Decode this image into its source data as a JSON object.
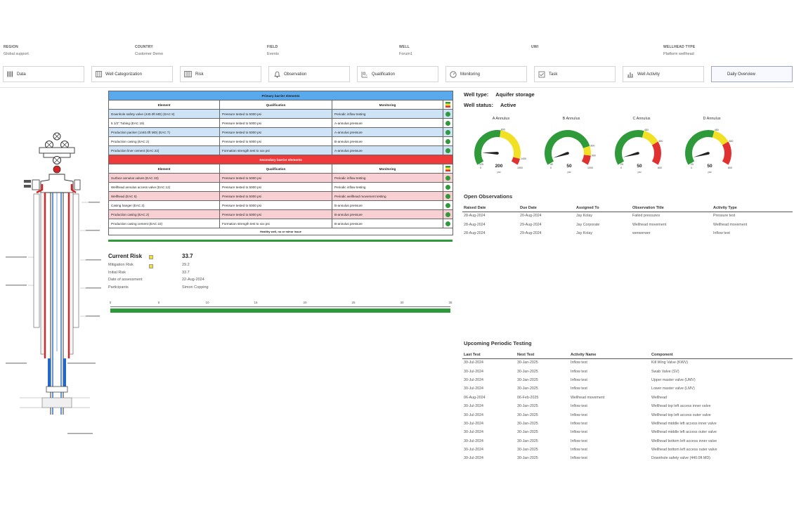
{
  "header": [
    {
      "label": "REGION",
      "value": "Global support"
    },
    {
      "label": "COUNTRY",
      "value": "Customer Demo"
    },
    {
      "label": "FIELD",
      "value": "Events"
    },
    {
      "label": "WELL",
      "value": "Forum1"
    },
    {
      "label": "UWI",
      "value": ""
    },
    {
      "label": "WELLHEAD TYPE",
      "value": "Platform wellhead"
    }
  ],
  "nav": [
    {
      "label": "Data",
      "icon": "data-icon"
    },
    {
      "label": "Well Categorization",
      "icon": "categorization-icon"
    },
    {
      "label": "Risk",
      "icon": "risk-icon"
    },
    {
      "label": "Observation",
      "icon": "bell-icon"
    },
    {
      "label": "Qualification",
      "icon": "qualification-icon"
    },
    {
      "label": "Monitoring",
      "icon": "gauge-icon"
    },
    {
      "label": "Task",
      "icon": "task-icon"
    },
    {
      "label": "Well Activity",
      "icon": "activity-icon"
    },
    {
      "label": "Daily Overview",
      "icon": "",
      "active": true
    }
  ],
  "primary": {
    "title": "Primary barrier elements",
    "cols": [
      "Element",
      "Qualification",
      "Monitoring"
    ],
    "rows": [
      {
        "element": "Downhole safety valve (440.0ft MD) (EAC 8)",
        "qualification": "Pressure tested to 5000 psi",
        "monitoring": "Periodic inflow testing"
      },
      {
        "element": "5 1/2\" Tubing (EAC 19)",
        "qualification": "Pressure tested to 5000 psi",
        "monitoring": "A-annulus pressure"
      },
      {
        "element": "Production packer (1440.0ft MD) (EAC 7)",
        "qualification": "Pressure tested to 5000 psi",
        "monitoring": "A-annulus pressure"
      },
      {
        "element": "Production casing (EAC 2)",
        "qualification": "Pressure tested to 5000 psi",
        "monitoring": "B-annulus pressure"
      },
      {
        "element": "Production liner cement (EAC 22)",
        "qualification": "Formation strength test to xxx psi",
        "monitoring": "A-annulus pressure"
      }
    ]
  },
  "secondary": {
    "title": "Secondary barrier elements",
    "cols": [
      "Element",
      "Qualification",
      "Monitoring"
    ],
    "rows": [
      {
        "element": "Surface annulus valves (EAC 33)",
        "qualification": "Pressure tested to 5000 psi",
        "monitoring": "Periodic inflow testing"
      },
      {
        "element": "Wellhead annulus access valve (EAC 12)",
        "qualification": "Pressure tested to 5000 psi",
        "monitoring": "Periodic inflow testing"
      },
      {
        "element": "Wellhead (EAC 5)",
        "qualification": "Pressure tested to 5000 psi",
        "monitoring": "Periodic wellhead movement testing"
      },
      {
        "element": "Casing hanger (EAC 3)",
        "qualification": "Pressure tested to 5000 psi",
        "monitoring": "B-annulus pressure"
      },
      {
        "element": "Production casing (EAC 2)",
        "qualification": "Pressure tested to 5000 psi",
        "monitoring": "B-annulus pressure"
      },
      {
        "element": "Production casing cement (EAC 22)",
        "qualification": "Formation strength test to xxx psi",
        "monitoring": "B-annulus pressure"
      }
    ]
  },
  "status_footer": "Healthy well, no or minor issue",
  "risk": {
    "current_label": "Current Risk",
    "current_value": "33.7",
    "mitigation_label": "Mitigation Risk",
    "mitigation_value": "29.2",
    "initial_label": "Initial Risk",
    "initial_value": "33.7",
    "date_label": "Date of assessment",
    "date_value": "22-Aug-2024",
    "participants_label": "Participants",
    "participants_value": "Simon Copping",
    "scale_ticks": [
      "0",
      "5",
      "10",
      "15",
      "20",
      "25",
      "30",
      "35"
    ]
  },
  "well": {
    "type_label": "Well type:",
    "type_value": "Aquifer storage",
    "status_label": "Well status:",
    "status_value": "Active"
  },
  "gauges": [
    {
      "title": "A Annulus",
      "value": "200",
      "unit": "psi",
      "min": "0",
      "max": "1500",
      "yellow": "800",
      "red": "1400",
      "low": "125",
      "reading": 200,
      "range": 1500
    },
    {
      "title": "B Annulus",
      "value": "50",
      "unit": "psi",
      "min": "0",
      "max": "1000",
      "yellow": "800",
      "red": "900",
      "low": "40",
      "reading": 50,
      "range": 1000
    },
    {
      "title": "C Annulus",
      "value": "50",
      "unit": "psi",
      "min": "0",
      "max": "800",
      "yellow": "450",
      "red": "600",
      "low": "25",
      "reading": 50,
      "range": 800
    },
    {
      "title": "D Annulus",
      "value": "50",
      "unit": "psi",
      "min": "0",
      "max": "800",
      "yellow": "450",
      "red": "600",
      "low": "25",
      "reading": 50,
      "range": 800
    }
  ],
  "observations": {
    "title": "Open Observations",
    "cols": [
      "Raised Date",
      "Due Date",
      "Assigned To",
      "Observation Title",
      "Activity Type"
    ],
    "rows": [
      [
        "28-Aug-2024",
        "20-Aug-2024",
        "Jay Kolay",
        "Failed pressures",
        "Pressure test"
      ],
      [
        "28-Aug-2024",
        "29-Aug-2024",
        "Jay Corporate",
        "Wellhead movement",
        "Wellhead movement"
      ],
      [
        "28-Aug-2024",
        "29-Aug-2024",
        "Jay Kolay",
        "werwerwer",
        "Inflow test"
      ]
    ]
  },
  "testing": {
    "title": "Upcoming Periodic Testing",
    "cols": [
      "Last Test",
      "Next Test",
      "Activity Name",
      "Component"
    ],
    "rows": [
      [
        "30-Jul-2024",
        "30-Jan-2025",
        "Inflow test",
        "Kill Wing Valve (KWV)"
      ],
      [
        "30-Jul-2024",
        "30-Jan-2025",
        "Inflow test",
        "Swab Valve (SV)"
      ],
      [
        "30-Jul-2024",
        "30-Jan-2025",
        "Inflow test",
        "Upper master valve (UMV)"
      ],
      [
        "30-Jul-2024",
        "30-Jan-2025",
        "Inflow test",
        "Lower master valve (LMV)"
      ],
      [
        "06-Aug-2024",
        "06-Feb-2025",
        "Wellhead movement",
        "Wellhead"
      ],
      [
        "30-Jul-2024",
        "30-Jan-2025",
        "Inflow test",
        "Wellhead top left access inner valve"
      ],
      [
        "30-Jul-2024",
        "30-Jan-2025",
        "Inflow test",
        "Wellhead top left access outer valve"
      ],
      [
        "30-Jul-2024",
        "30-Jan-2025",
        "Inflow test",
        "Wellhead middle left access inner valve"
      ],
      [
        "30-Jul-2024",
        "30-Jan-2025",
        "Inflow test",
        "Wellhead middle left access outer valve"
      ],
      [
        "30-Jul-2024",
        "30-Jan-2025",
        "Inflow test",
        "Wellhead bottom left access inner valve"
      ],
      [
        "30-Jul-2024",
        "30-Jan-2025",
        "Inflow test",
        "Wellhead bottom left access outer valve"
      ],
      [
        "30-Jul-2024",
        "30-Jan-2025",
        "Inflow test",
        "Downhole safety valve (440.0ft MD)"
      ]
    ]
  },
  "colors": {
    "green": "#2e9a3a",
    "yellow": "#f2e024",
    "red": "#e03030",
    "primary": "#59a9ec",
    "secondary": "#ee3a3a"
  }
}
